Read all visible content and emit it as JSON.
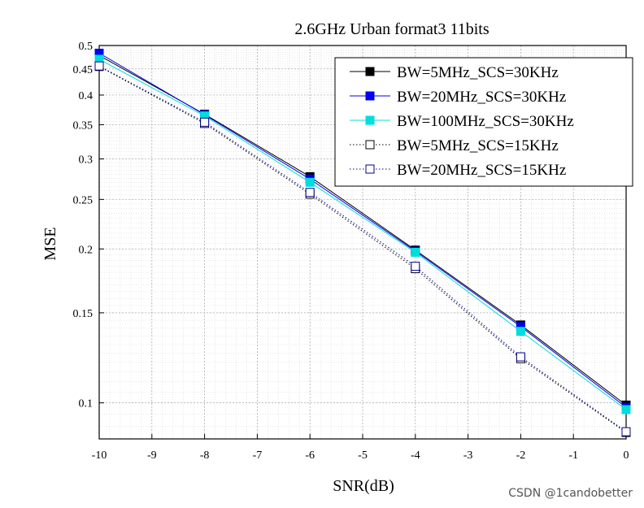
{
  "chart_data": {
    "type": "line",
    "title": "2.6GHz Urban format3 11bits",
    "xlabel": "SNR(dB)",
    "ylabel": "MSE",
    "xlim": [
      -10,
      0
    ],
    "ylim": [
      0.085,
      0.5
    ],
    "yscale": "log",
    "grid": true,
    "legend_position": "top-right",
    "x_ticks": [
      -10,
      -9,
      -8,
      -7,
      -6,
      -5,
      -4,
      -3,
      -2,
      -1,
      0
    ],
    "y_ticks": [
      0.1,
      0.15,
      0.2,
      0.25,
      0.3,
      0.35,
      0.4,
      0.45,
      0.5
    ],
    "x": [
      -10,
      -8,
      -6,
      -4,
      -2,
      0
    ],
    "series": [
      {
        "name": "BW=5MHz_SCS=30KHz",
        "values": [
          0.478,
          0.367,
          0.277,
          0.199,
          0.142,
          0.099
        ],
        "color": "#000000",
        "marker": "square-filled",
        "line": "solid"
      },
      {
        "name": "BW=20MHz_SCS=30KHz",
        "values": [
          0.483,
          0.366,
          0.274,
          0.198,
          0.141,
          0.098
        ],
        "color": "#0000ee",
        "marker": "square-filled",
        "line": "solid"
      },
      {
        "name": "BW=100MHz_SCS=30KHz",
        "values": [
          0.47,
          0.364,
          0.27,
          0.197,
          0.138,
          0.097
        ],
        "color": "#00dddd",
        "marker": "square-filled",
        "line": "solid"
      },
      {
        "name": "BW=5MHz_SCS=15KHz",
        "values": [
          0.455,
          0.352,
          0.256,
          0.183,
          0.122,
          0.0875
        ],
        "color": "#000000",
        "marker": "square-open",
        "line": "dotted"
      },
      {
        "name": "BW=20MHz_SCS=15KHz",
        "values": [
          0.456,
          0.354,
          0.258,
          0.185,
          0.123,
          0.0878
        ],
        "color": "#00008b",
        "marker": "square-open",
        "line": "dotted"
      }
    ]
  },
  "watermark": "CSDN @1candobetter"
}
